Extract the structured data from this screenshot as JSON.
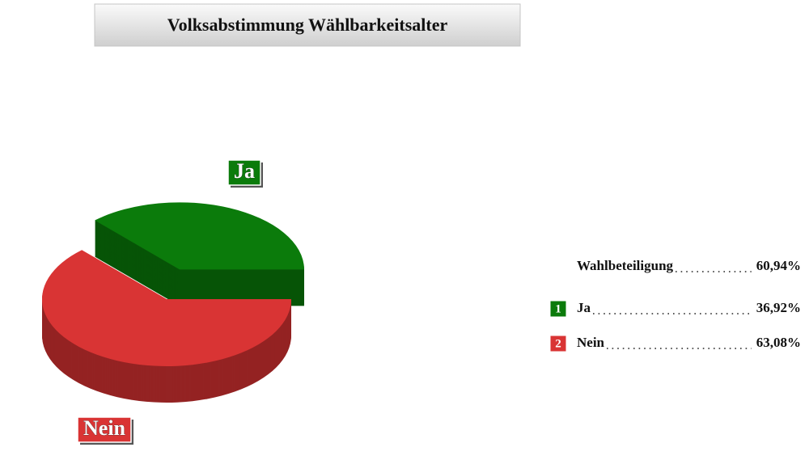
{
  "chart_data": {
    "type": "pie",
    "title": "Volksabstimmung Wählbarkeitsalter",
    "categories": [
      "Ja",
      "Nein"
    ],
    "values": [
      36.92,
      63.08
    ],
    "value_labels": [
      "36,92%",
      "63,08%"
    ],
    "colors": [
      "#0b7b0b",
      "#d93434"
    ],
    "explode": [
      true,
      false
    ],
    "legend_numbers": [
      "1",
      "2"
    ],
    "turnout": {
      "label": "Wahlbeteiligung",
      "value": 60.94,
      "value_label": "60,94%"
    }
  }
}
